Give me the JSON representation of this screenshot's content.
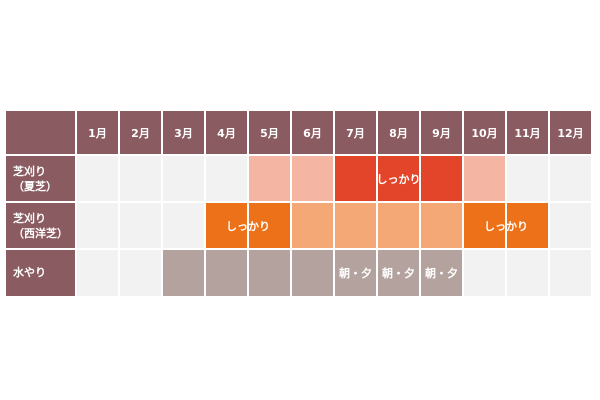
{
  "months": [
    "1月",
    "2月",
    "3月",
    "4月",
    "5月",
    "6月",
    "7月",
    "8月",
    "9月",
    "10月",
    "11月",
    "12月"
  ],
  "rows": [
    {
      "key": "summer",
      "label_line1": "芝刈り",
      "label_line2": "（夏芝）",
      "cells": [
        "",
        "",
        "",
        "",
        "light",
        "light",
        "dark",
        "dark",
        "dark",
        "light",
        "",
        ""
      ],
      "labels": [
        {
          "start": 6,
          "span": 3,
          "text": "しっかり"
        }
      ]
    },
    {
      "key": "western",
      "label_line1": "芝刈り",
      "label_line2": "（西洋芝）",
      "cells": [
        "",
        "",
        "",
        "dark",
        "dark",
        "light",
        "light",
        "light",
        "light",
        "dark",
        "dark",
        ""
      ],
      "labels": [
        {
          "start": 3,
          "span": 2,
          "text": "しっかり"
        },
        {
          "start": 9,
          "span": 2,
          "text": "しっかり"
        }
      ]
    },
    {
      "key": "water",
      "label_line1": "水やり",
      "label_line2": "",
      "cells": [
        "",
        "",
        "fill",
        "fill",
        "fill",
        "fill",
        "fill",
        "fill",
        "fill",
        "",
        "",
        ""
      ],
      "labels": [
        {
          "start": 6,
          "span": 1,
          "text": "朝・夕"
        },
        {
          "start": 7,
          "span": 1,
          "text": "朝・夕"
        },
        {
          "start": 8,
          "span": 1,
          "text": "朝・夕"
        }
      ]
    }
  ],
  "colors": {
    "header": "#8a5b60",
    "empty": "#f2f2f2",
    "summer_light": "#f4b5a3",
    "summer_dark": "#e2452a",
    "western_dark": "#ec7118",
    "western_light": "#f4a876",
    "water": "#b4a29e"
  }
}
